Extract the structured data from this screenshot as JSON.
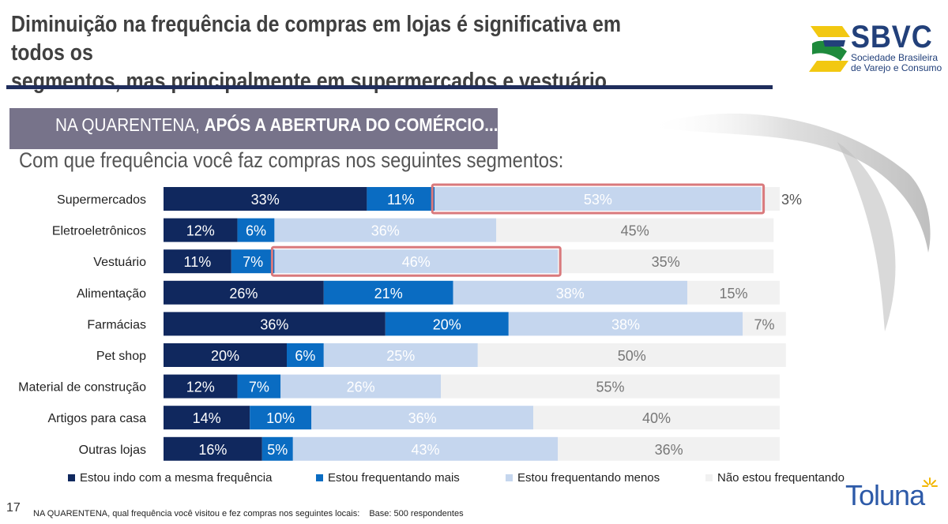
{
  "title": {
    "line1": "Diminuição na frequência de compras em lojas é significativa em todos os",
    "line2": "segmentos, mas principalmente em supermercados e vestuário"
  },
  "logo": {
    "name": "SBVC",
    "line1": "Sociedade Brasileira",
    "line2": "de Varejo e Consumo"
  },
  "banner": {
    "normal": "NA QUARENTENA, ",
    "bold": "APÓS A ABERTURA DO COMÉRCIO..."
  },
  "question": "Com que frequência você faz compras nos seguintes segmentos:",
  "chart_data": {
    "type": "bar",
    "orientation": "horizontal",
    "stacked": true,
    "percent": true,
    "xlim": [
      0,
      100
    ],
    "categories": [
      "Supermercados",
      "Eletroeletrônicos",
      "Vestuário",
      "Alimentação",
      "Farmácias",
      "Pet shop",
      "Material de construção",
      "Artigos para casa",
      "Outras lojas"
    ],
    "series": [
      {
        "name": "Estou indo com a mesma frequência",
        "color": "#10285e",
        "text_color": "#ffffff",
        "values": [
          33,
          12,
          11,
          26,
          36,
          20,
          12,
          14,
          16
        ]
      },
      {
        "name": "Estou frequentando mais",
        "color": "#0a6cc2",
        "text_color": "#ffffff",
        "values": [
          11,
          6,
          7,
          21,
          20,
          6,
          7,
          10,
          5
        ]
      },
      {
        "name": "Estou frequentando menos",
        "color": "#c5d6ee",
        "text_color": "#ffffff",
        "values": [
          53,
          36,
          46,
          38,
          38,
          25,
          26,
          36,
          43
        ]
      },
      {
        "name": "Não estou frequentando",
        "color": "#f1f1f1",
        "text_color": "#777777",
        "values": [
          3,
          45,
          35,
          15,
          7,
          50,
          55,
          40,
          36
        ]
      }
    ],
    "label_suffix": "%",
    "highlights": [
      {
        "category": "Supermercados",
        "series": "Estou frequentando menos",
        "color": "#d9797c"
      },
      {
        "category": "Vestuário",
        "series": "Estou frequentando menos",
        "color": "#d9797c"
      }
    ],
    "legend_position": "bottom"
  },
  "footer": {
    "page_number": "17",
    "note": "NA QUARENTENA, qual frequência você visitou e fez compras nos seguintes locais:",
    "base": "Base: 500 respondentes",
    "brand": "Toluna"
  }
}
